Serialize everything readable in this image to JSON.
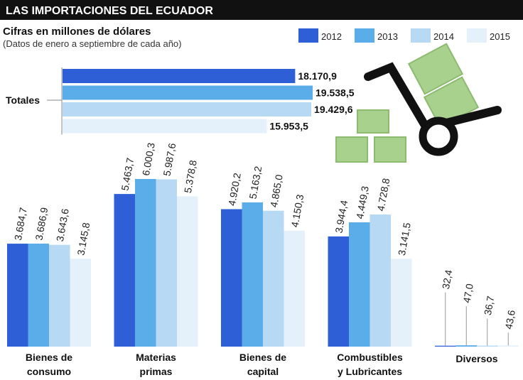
{
  "header": {
    "title": "LAS IMPORTACIONES DEL ECUADOR",
    "subtitle": "Cifras en millones de dólares",
    "note": "(Datos de enero a septiembre de cada año)"
  },
  "chart_data": [
    {
      "type": "bar",
      "orientation": "horizontal",
      "categories": [
        "Totales"
      ],
      "series": [
        {
          "name": "2012",
          "color": "#2f5fd6",
          "values": [
            18170.9
          ],
          "value_labels": [
            "18.170,9"
          ]
        },
        {
          "name": "2013",
          "color": "#5badea",
          "values": [
            19538.5
          ],
          "value_labels": [
            "19.538,5"
          ]
        },
        {
          "name": "2014",
          "color": "#b7d9f3",
          "values": [
            19429.6
          ],
          "value_labels": [
            "19.429,6"
          ]
        },
        {
          "name": "2015",
          "color": "#e4f1fb",
          "values": [
            15953.5
          ],
          "value_labels": [
            "15.953,5"
          ]
        }
      ]
    },
    {
      "type": "bar",
      "orientation": "vertical",
      "categories": [
        "Bienes de\nconsumo",
        "Materias\nprimas",
        "Bienes de\ncapital",
        "Combustibles\ny Lubricantes",
        "Diversos"
      ],
      "series": [
        {
          "color": "#2f5fd6",
          "values": [
            3684.7,
            5463.7,
            4920.2,
            3944.4,
            32.4
          ],
          "value_labels": [
            "3.684,7",
            "5.463,7",
            "4.920,2",
            "3.944,4",
            "32,4"
          ]
        },
        {
          "color": "#5badea",
          "values": [
            3686.9,
            6000.3,
            5163.2,
            4449.3,
            47.0
          ],
          "value_labels": [
            "3.686,9",
            "6.000,3",
            "5.163,2",
            "4.449,3",
            "47,0"
          ]
        },
        {
          "color": "#b7d9f3",
          "values": [
            3643.6,
            5987.6,
            4865.0,
            4728.8,
            36.7
          ],
          "value_labels": [
            "3.643,6",
            "5.987,6",
            "4.865,0",
            "4.728,8",
            "36,7"
          ]
        },
        {
          "color": "#e4f1fb",
          "values": [
            3145.8,
            5378.8,
            4150.3,
            3141.5,
            43.6
          ],
          "value_labels": [
            "3.145,8",
            "5.378,8",
            "4.150,3",
            "3.141,5",
            "43,6"
          ]
        }
      ]
    }
  ]
}
